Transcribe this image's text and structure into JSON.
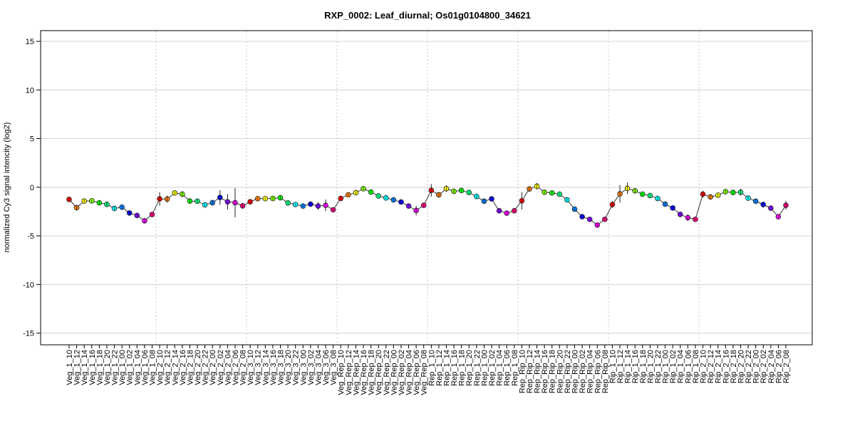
{
  "chart_data": {
    "type": "line",
    "title": "RXP_0002: Leaf_diurnal; Os01g0104800_34621",
    "xlabel": "",
    "ylabel": "normalized Cy3 signal intencity (log2)",
    "ylim": [
      -16.2,
      16.1
    ],
    "yticks": [
      15,
      10,
      5,
      0,
      -5,
      -10,
      -15
    ],
    "grid": true,
    "group_size": 12,
    "point_colors": [
      "#ff0000",
      "#ff8000",
      "#ffff00",
      "#80ff00",
      "#00ff00",
      "#00ff80",
      "#00ffff",
      "#0080ff",
      "#0000ff",
      "#8000ff",
      "#ff00ff",
      "#ff0080"
    ],
    "categories": [
      "Veg_1_10",
      "Veg_1_12",
      "Veg_1_14",
      "Veg_1_16",
      "Veg_1_18",
      "Veg_1_20",
      "Veg_1_22",
      "Veg_1_00",
      "Veg_1_02",
      "Veg_1_04",
      "Veg_1_06",
      "Veg_1_08",
      "Veg_2_10",
      "Veg_2_12",
      "Veg_2_14",
      "Veg_2_16",
      "Veg_2_18",
      "Veg_2_20",
      "Veg_2_22",
      "Veg_2_00",
      "Veg_2_02",
      "Veg_2_04",
      "Veg_2_06",
      "Veg_2_08",
      "Veg_3_10",
      "Veg_3_12",
      "Veg_3_14",
      "Veg_3_16",
      "Veg_3_18",
      "Veg_3_20",
      "Veg_3_22",
      "Veg_3_00",
      "Veg_3_02",
      "Veg_3_04",
      "Veg_3_06",
      "Veg_3_08",
      "Veg_Rep_10",
      "Veg_Rep_12",
      "Veg_Rep_14",
      "Veg_Rep_16",
      "Veg_Rep_18",
      "Veg_Rep_20",
      "Veg_Rep_22",
      "Veg_Rep_00",
      "Veg_Rep_02",
      "Veg_Rep_04",
      "Veg_Rep_06",
      "Veg_Rep_08",
      "Rep_1_10",
      "Rep_1_12",
      "Rep_1_14",
      "Rep_1_16",
      "Rep_1_18",
      "Rep_1_20",
      "Rep_1_22",
      "Rep_1_00",
      "Rep_1_02",
      "Rep_1_04",
      "Rep_1_06",
      "Rep_1_08",
      "Rep_Rip_10",
      "Rep_Rip_12",
      "Rep_Rip_14",
      "Rep_Rip_16",
      "Rep_Rip_18",
      "Rep_Rip_20",
      "Rep_Rip_22",
      "Rep_Rip_00",
      "Rep_Rip_02",
      "Rep_Rip_04",
      "Rep_Rip_06",
      "Rep_Rip_08",
      "Rip_1_10",
      "Rip_1_12",
      "Rip_1_14",
      "Rip_1_16",
      "Rip_1_18",
      "Rip_1_20",
      "Rip_1_22",
      "Rip_1_00",
      "Rip_1_02",
      "Rip_1_04",
      "Rip_1_06",
      "Rip_1_08",
      "Rip_2_10",
      "Rip_2_12",
      "Rip_2_14",
      "Rip_2_16",
      "Rip_2_18",
      "Rip_2_20",
      "Rip_2_22",
      "Rip_2_00",
      "Rip_2_02",
      "Rip_2_04",
      "Rip_2_06",
      "Rip_2_08"
    ],
    "values": [
      -1.25,
      -2.1,
      -1.42,
      -1.4,
      -1.6,
      -1.76,
      -2.18,
      -2.05,
      -2.65,
      -2.9,
      -3.45,
      -2.8,
      -1.2,
      -1.22,
      -0.59,
      -0.71,
      -1.42,
      -1.44,
      -1.81,
      -1.59,
      -1.05,
      -1.5,
      -1.59,
      -1.91,
      -1.49,
      -1.17,
      -1.17,
      -1.15,
      -1.08,
      -1.61,
      -1.78,
      -1.93,
      -1.74,
      -1.93,
      -1.86,
      -2.32,
      -1.15,
      -0.78,
      -0.56,
      -0.15,
      -0.49,
      -0.9,
      -1.1,
      -1.3,
      -1.52,
      -1.93,
      -2.39,
      -1.86,
      -0.32,
      -0.78,
      -0.15,
      -0.42,
      -0.34,
      -0.54,
      -0.95,
      -1.44,
      -1.2,
      -2.42,
      -2.66,
      -2.42,
      -1.39,
      -0.17,
      0.1,
      -0.51,
      -0.59,
      -0.71,
      -1.3,
      -2.25,
      -3.03,
      -3.3,
      -3.89,
      -3.3,
      -1.78,
      -0.68,
      -0.12,
      -0.37,
      -0.71,
      -0.86,
      -1.15,
      -1.74,
      -2.13,
      -2.79,
      -3.13,
      -3.3,
      -0.71,
      -1.0,
      -0.81,
      -0.46,
      -0.54,
      -0.51,
      -1.12,
      -1.44,
      -1.78,
      -2.15,
      -3.03,
      -1.86
    ],
    "errors": [
      0.25,
      0.3,
      0.15,
      0.12,
      0.15,
      0.2,
      0.25,
      0.15,
      0.25,
      0.15,
      0.2,
      0.15,
      0.7,
      0.35,
      0.15,
      0.3,
      0.25,
      0.15,
      0.15,
      0.3,
      0.75,
      0.8,
      1.5,
      0.3,
      0.15,
      0.12,
      0.12,
      0.12,
      0.15,
      0.15,
      0.12,
      0.12,
      0.15,
      0.4,
      0.6,
      0.15,
      0.15,
      0.12,
      0.15,
      0.15,
      0.12,
      0.12,
      0.12,
      0.12,
      0.15,
      0.15,
      0.5,
      0.15,
      0.65,
      0.2,
      0.35,
      0.15,
      0.12,
      0.15,
      0.15,
      0.25,
      0.15,
      0.15,
      0.15,
      0.15,
      0.9,
      0.2,
      0.35,
      0.15,
      0.12,
      0.12,
      0.15,
      0.15,
      0.12,
      0.12,
      0.15,
      0.15,
      0.35,
      0.9,
      0.6,
      0.2,
      0.12,
      0.12,
      0.15,
      0.15,
      0.15,
      0.2,
      0.35,
      0.15,
      0.35,
      0.25,
      0.15,
      0.15,
      0.15,
      0.35,
      0.15,
      0.15,
      0.3,
      0.25,
      0.15,
      0.45
    ]
  }
}
